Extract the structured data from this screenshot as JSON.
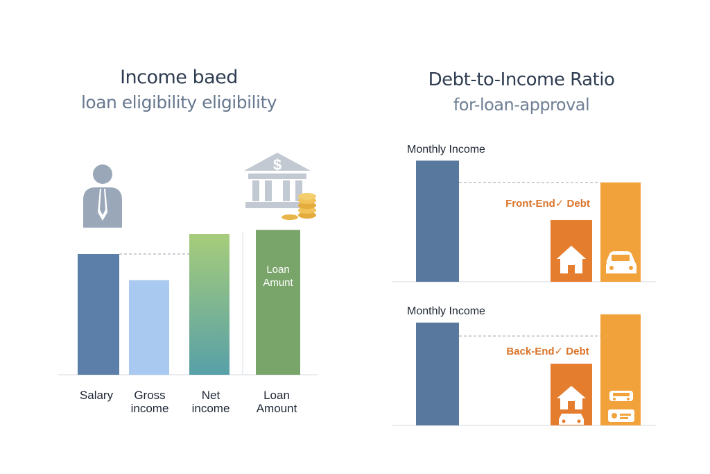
{
  "left_panel": {
    "title": "Income baed",
    "subtitle": "loan eligibility eligibility",
    "icons": [
      "person-icon",
      "bank-icon",
      "coin-stack-icon"
    ]
  },
  "right_panel": {
    "title": "Debt-to-Income Ratio",
    "subtitle": "for-loan-approval",
    "icons": [
      "house-icon",
      "car-icon",
      "vehicle-icon",
      "credit-card-icon"
    ]
  },
  "colors": {
    "salary": "#5b7fa8",
    "gross_income": "#a9c9f0",
    "net_income_top": "#a7cd7a",
    "net_income_bottom": "#57a0a8",
    "loan_amount": "#7aa56a",
    "monthly_income": "#58789d",
    "debt_orange": "#e47d2e",
    "debt_yellow": "#f2a23b",
    "debt_label": "#d9742a",
    "title_text": "#2f3d52"
  },
  "chart_data": [
    {
      "type": "bar",
      "categories": [
        "Salary",
        "Gross income",
        "Net income",
        "Loan Amount"
      ],
      "values": [
        60,
        47,
        70,
        72
      ],
      "bar_labels": [
        "",
        "",
        "",
        "Loan Amunt"
      ],
      "reference_line": 60,
      "ylim": [
        0,
        100
      ]
    },
    {
      "type": "bar",
      "title": "Monthly Income",
      "annotation": "Front-End✓ Debt",
      "categories": [
        "",
        "",
        ""
      ],
      "values": [
        100,
        51,
        82
      ],
      "reference_line": 82,
      "ylim": [
        0,
        110
      ]
    },
    {
      "type": "bar",
      "title": "Monthly Income",
      "annotation": "Back-End✓ Debt",
      "categories": [
        "",
        "",
        ""
      ],
      "values": [
        100,
        60,
        108
      ],
      "reference_line": 87,
      "ylim": [
        0,
        110
      ]
    }
  ]
}
